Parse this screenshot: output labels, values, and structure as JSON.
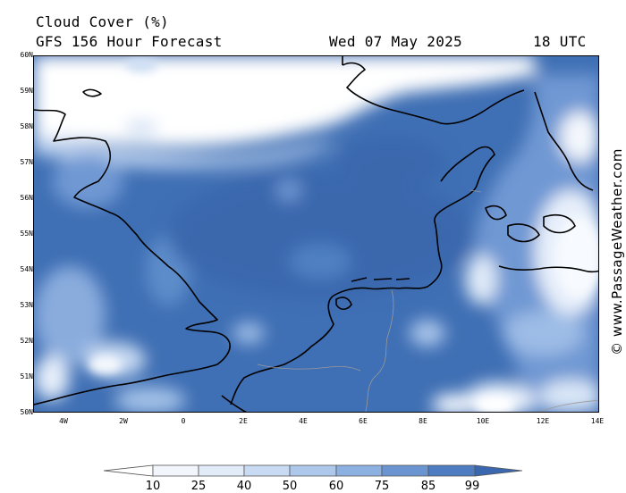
{
  "header": {
    "variable": "Cloud Cover (%)",
    "model": "GFS 156 Hour Forecast",
    "date": "Wed 07 May 2025",
    "time": "18 UTC"
  },
  "axes": {
    "lat_labels": [
      "60N",
      "59N",
      "58N",
      "57N",
      "56N",
      "55N",
      "54N",
      "53N",
      "52N",
      "51N",
      "50N"
    ],
    "lon_labels": [
      "4W",
      "2W",
      "0",
      "2E",
      "4E",
      "6E",
      "8E",
      "10E",
      "12E",
      "14E"
    ]
  },
  "credit": "© www.PassageWeather.com",
  "legend": {
    "levels": [
      "10",
      "25",
      "40",
      "50",
      "60",
      "75",
      "85",
      "99"
    ],
    "colors": [
      "#ffffff",
      "#eef4fc",
      "#d6e4f6",
      "#bed3ef",
      "#a3c1e7",
      "#82a9dc",
      "#5d8cca",
      "#3a6db3",
      "#2f5a9b"
    ]
  },
  "map": {
    "region": "North Sea",
    "lat_range": [
      50,
      60
    ],
    "lon_range": [
      -5,
      14
    ],
    "land_outline_color": "#000000",
    "border_color": "#999999"
  }
}
